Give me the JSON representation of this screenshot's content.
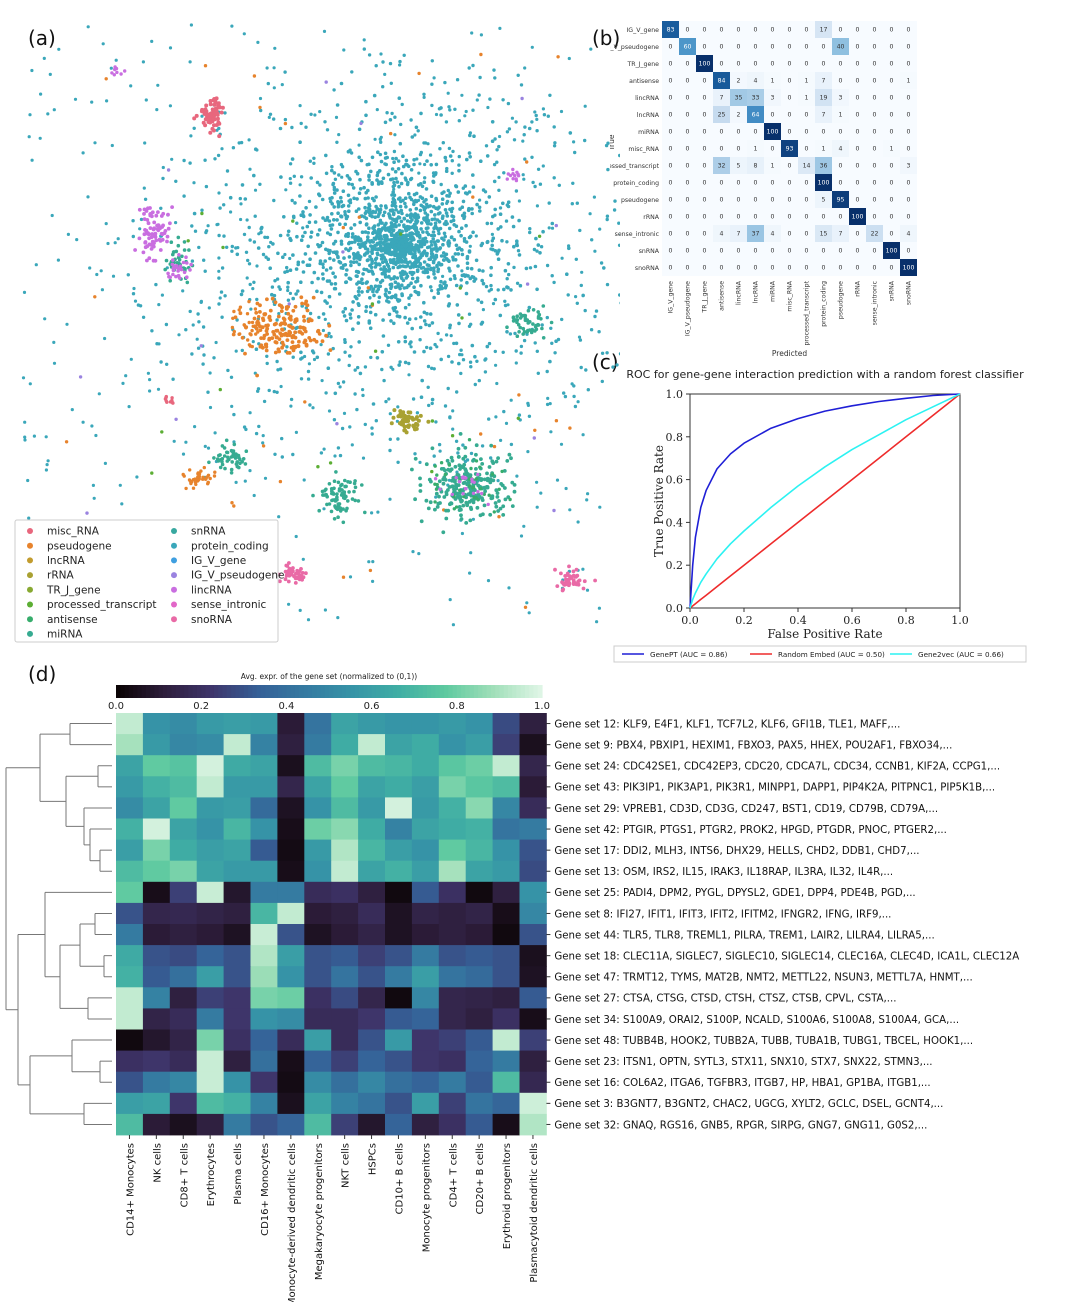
{
  "panel_labels": {
    "a": "(a)",
    "b": "(b)",
    "c": "(c)",
    "d": "(d)"
  },
  "colors": {
    "misc_RNA": "#e8677d",
    "pseudogene": "#e7832c",
    "lincRNA_a": "#c29c2e",
    "rRNA": "#a9a132",
    "TR_J_gene": "#88a932",
    "processed_transcript": "#5cae34",
    "antisense": "#37ad6c",
    "miRNA": "#36ab91",
    "snRNA": "#38a8a0",
    "protein_coding": "#3aa7ba",
    "IG_V_gene": "#3f9fe0",
    "IG_V_pseudogene": "#9a83e0",
    "lincRNA_b": "#c96ee0",
    "sense_intronic": "#e267c8",
    "snoRNA": "#e96aa6",
    "genept": "#1f1fd6",
    "random": "#ee2b2b",
    "gene2vec": "#2cf2f2"
  },
  "chart_data": [
    {
      "type": "scatter",
      "panel": "(a)",
      "legend_position": "bottom-left",
      "legend": [
        {
          "label": "misc_RNA",
          "color": "#e8677d"
        },
        {
          "label": "pseudogene",
          "color": "#e7832c"
        },
        {
          "label": "lncRNA",
          "color": "#c29c2e"
        },
        {
          "label": "rRNA",
          "color": "#a9a132"
        },
        {
          "label": "TR_J_gene",
          "color": "#88a932"
        },
        {
          "label": "processed_transcript",
          "color": "#5cae34"
        },
        {
          "label": "antisense",
          "color": "#37ad6c"
        },
        {
          "label": "miRNA",
          "color": "#36ab91"
        },
        {
          "label": "snRNA",
          "color": "#38a8a0"
        },
        {
          "label": "protein_coding",
          "color": "#3aa7ba"
        },
        {
          "label": "IG_V_gene",
          "color": "#3f9fe0"
        },
        {
          "label": "IG_V_pseudogene",
          "color": "#9a83e0"
        },
        {
          "label": "lincRNA",
          "color": "#c96ee0"
        },
        {
          "label": "sense_intronic",
          "color": "#e267c8"
        },
        {
          "label": "snoRNA",
          "color": "#e96aa6"
        }
      ]
    },
    {
      "type": "heatmap",
      "panel": "(b)",
      "xlabel": "Predicted",
      "ylabel": "True",
      "labels": [
        "IG_V_gene",
        "IG_V_pseudogene",
        "TR_J_gene",
        "antisense",
        "lincRNA",
        "lncRNA",
        "miRNA",
        "misc_RNA",
        "processed_transcript",
        "protein_coding",
        "pseudogene",
        "rRNA",
        "sense_intronic",
        "snRNA",
        "snoRNA"
      ],
      "matrix": [
        [
          83,
          0,
          0,
          0,
          0,
          0,
          0,
          0,
          0,
          17,
          0,
          0,
          0,
          0,
          0
        ],
        [
          0,
          60,
          0,
          0,
          0,
          0,
          0,
          0,
          0,
          0,
          40,
          0,
          0,
          0,
          0
        ],
        [
          0,
          0,
          100,
          0,
          0,
          0,
          0,
          0,
          0,
          0,
          0,
          0,
          0,
          0,
          0
        ],
        [
          0,
          0,
          0,
          84,
          2,
          4,
          1,
          0,
          1,
          7,
          0,
          0,
          0,
          0,
          1
        ],
        [
          0,
          0,
          0,
          7,
          35,
          33,
          3,
          0,
          1,
          19,
          3,
          0,
          0,
          0,
          0
        ],
        [
          0,
          0,
          0,
          25,
          2,
          64,
          0,
          0,
          0,
          7,
          1,
          0,
          0,
          0,
          0
        ],
        [
          0,
          0,
          0,
          0,
          0,
          0,
          100,
          0,
          0,
          0,
          0,
          0,
          0,
          0,
          0
        ],
        [
          0,
          0,
          0,
          0,
          0,
          1,
          0,
          93,
          0,
          1,
          4,
          0,
          0,
          1,
          0
        ],
        [
          0,
          0,
          0,
          32,
          5,
          8,
          1,
          0,
          14,
          36,
          0,
          0,
          0,
          0,
          3
        ],
        [
          0,
          0,
          0,
          0,
          0,
          0,
          0,
          0,
          0,
          100,
          0,
          0,
          0,
          0,
          0
        ],
        [
          0,
          0,
          0,
          0,
          0,
          0,
          0,
          0,
          0,
          5,
          95,
          0,
          0,
          0,
          0
        ],
        [
          0,
          0,
          0,
          0,
          0,
          0,
          0,
          0,
          0,
          0,
          0,
          100,
          0,
          0,
          0
        ],
        [
          0,
          0,
          0,
          4,
          7,
          37,
          4,
          0,
          0,
          15,
          7,
          0,
          22,
          0,
          4
        ],
        [
          0,
          0,
          0,
          0,
          0,
          0,
          0,
          0,
          0,
          0,
          0,
          0,
          0,
          100,
          0
        ],
        [
          0,
          0,
          0,
          0,
          0,
          0,
          0,
          0,
          0,
          0,
          0,
          0,
          0,
          0,
          100
        ]
      ]
    },
    {
      "type": "line",
      "panel": "(c)",
      "title": "ROC for gene-gene interaction prediction with a random forest classifier",
      "xlabel": "False Positive Rate",
      "ylabel": "True Positive Rate",
      "xlim": [
        0,
        1
      ],
      "ylim": [
        0,
        1
      ],
      "ticks": [
        "0.0",
        "0.2",
        "0.4",
        "0.6",
        "0.8",
        "1.0"
      ],
      "legend_position": "bottom",
      "x": [
        0,
        0.01,
        0.02,
        0.04,
        0.06,
        0.1,
        0.15,
        0.2,
        0.3,
        0.4,
        0.5,
        0.6,
        0.7,
        0.8,
        0.9,
        1.0
      ],
      "series": [
        {
          "name": "GenePT (AUC = 0.86)",
          "color": "#1f1fd6",
          "values": [
            0,
            0.2,
            0.33,
            0.47,
            0.55,
            0.65,
            0.72,
            0.77,
            0.84,
            0.885,
            0.92,
            0.945,
            0.965,
            0.98,
            0.993,
            1.0
          ]
        },
        {
          "name": "Random Embed (AUC = 0.50)",
          "color": "#ee2b2b",
          "values": [
            0,
            0.01,
            0.02,
            0.04,
            0.06,
            0.1,
            0.15,
            0.2,
            0.3,
            0.4,
            0.5,
            0.6,
            0.7,
            0.8,
            0.9,
            1.0
          ]
        },
        {
          "name": "Gene2vec (AUC = 0.66)",
          "color": "#2cf2f2",
          "values": [
            0,
            0.04,
            0.07,
            0.12,
            0.16,
            0.23,
            0.3,
            0.36,
            0.47,
            0.57,
            0.66,
            0.74,
            0.81,
            0.88,
            0.94,
            1.0
          ]
        }
      ]
    },
    {
      "type": "heatmap",
      "panel": "(d)",
      "colorbar_label": "Avg. expr. of the gene set (normalized to (0,1))",
      "colorbar_ticks": [
        "0.0",
        "0.2",
        "0.4",
        "0.6",
        "0.8",
        "1.0"
      ],
      "columns": [
        "CD14+ Monocytes",
        "NK cells",
        "CD8+ T cells",
        "Erythrocytes",
        "Plasma cells",
        "CD16+ Monocytes",
        "Monocyte-derived dendritic cells",
        "Megakaryocyte progenitors",
        "NKT cells",
        "HSPCs",
        "CD10+ B cells",
        "Monocyte progenitors",
        "CD4+ T cells",
        "CD20+ B cells",
        "Erythroid progenitors",
        "Plasmacytoid dendritic cells"
      ],
      "rows": [
        "Gene set 12: KLF9, E4F1, KLF1, TCF7L2, KLF6, GFI1B, TLE1, MAFF,...",
        "Gene set 9: PBX4, PBXIP1, HEXIM1, FBXO3, PAX5, HHEX, POU2AF1, FBXO34,...",
        "Gene set 24: CDC42SE1, CDC42EP3, CDC20, CDCA7L, CDC34, CCNB1, KIF2A, CCPG1,...",
        "Gene set 43: PIK3IP1, PIK3AP1, PIK3R1, MINPP1, DAPP1, PIP4K2A, PITPNC1, PIP5K1B,...",
        "Gene set 29: VPREB1, CD3D, CD3G, CD247, BST1, CD19, CD79B, CD79A,...",
        "Gene set 42: PTGIR, PTGS1, PTGR2, PROK2, HPGD, PTGDR, PNOC, PTGER2,...",
        "Gene set 17: DDI2, MLH3, INTS6, DHX29, HELLS, CHD2, DDB1, CHD7,...",
        "Gene set 13: OSM, IRS2, IL15, IRAK3, IL18RAP, IL3RA, IL32, IL4R,...",
        "Gene set 25: PADI4, DPM2, PYGL, DPYSL2, GDE1, DPP4, PDE4B, PGD,...",
        "Gene set 8: IFI27, IFIT1, IFIT3, IFIT2, IFITM2, IFNGR2, IFNG, IRF9,...",
        "Gene set 44: TLR5, TLR8, TREML1, PILRA, TREM1, LAIR2, LILRA4, LILRA5,...",
        "Gene set 18: CLEC11A, SIGLEC7, SIGLEC10, SIGLEC14, CLEC16A, CLEC4D, ICA1L, CLEC12A",
        "Gene set 47: TRMT12, TYMS, MAT2B, NMT2, METTL22, NSUN3, METTL7A, HNMT,...",
        "Gene set 27: CTSA, CTSG, CTSD, CTSH, CTSZ, CTSB, CPVL, CSTA,...",
        "Gene set 34: S100A9, ORAI2, S100P, NCALD, S100A6, S100A8, S100A4, GCA,...",
        "Gene set 48: TUBB4B, HOOK2, TUBB2A, TUBB, TUBA1B, TUBG1, TBCEL, HOOK1,...",
        "Gene set 23: ITSN1, OPTN, SYTL3, STX11, SNX10, STX7, SNX22, STMN3,...",
        "Gene set 16: COL6A2, ITGA6, TGFBR3, ITGB7, HP, HBA1, GP1BA, ITGB1,...",
        "Gene set 3: B3GNT7, B3GNT2, CHAC2, UGCG, XYLT2, GCLC, DSEL, GCNT4,...",
        "Gene set 32: GNAQ, RGS16, GNB5, RPGR, SIRPG, GNG7, GNG11, G0S2,..."
      ],
      "values": [
        [
          0.95,
          0.55,
          0.52,
          0.58,
          0.6,
          0.58,
          0.1,
          0.42,
          0.62,
          0.58,
          0.56,
          0.56,
          0.58,
          0.55,
          0.28,
          0.12
        ],
        [
          0.9,
          0.58,
          0.5,
          0.52,
          0.95,
          0.48,
          0.12,
          0.45,
          0.66,
          0.95,
          0.62,
          0.66,
          0.55,
          0.6,
          0.25,
          0.05
        ],
        [
          0.62,
          0.78,
          0.75,
          0.98,
          0.65,
          0.62,
          0.05,
          0.72,
          0.82,
          0.72,
          0.7,
          0.66,
          0.76,
          0.8,
          0.95,
          0.15
        ],
        [
          0.58,
          0.68,
          0.72,
          0.95,
          0.58,
          0.58,
          0.15,
          0.62,
          0.78,
          0.62,
          0.66,
          0.6,
          0.82,
          0.76,
          0.72,
          0.1
        ],
        [
          0.52,
          0.62,
          0.78,
          0.58,
          0.6,
          0.38,
          0.06,
          0.55,
          0.72,
          0.58,
          0.98,
          0.58,
          0.68,
          0.85,
          0.5,
          0.18
        ],
        [
          0.68,
          0.98,
          0.62,
          0.55,
          0.7,
          0.55,
          0.04,
          0.8,
          0.85,
          0.66,
          0.48,
          0.62,
          0.66,
          0.68,
          0.42,
          0.45
        ],
        [
          0.6,
          0.82,
          0.66,
          0.6,
          0.62,
          0.32,
          0.03,
          0.58,
          0.92,
          0.7,
          0.6,
          0.55,
          0.78,
          0.7,
          0.55,
          0.3
        ],
        [
          0.72,
          0.78,
          0.82,
          0.62,
          0.58,
          0.58,
          0.04,
          0.55,
          0.95,
          0.62,
          0.68,
          0.6,
          0.9,
          0.62,
          0.58,
          0.28
        ],
        [
          0.78,
          0.04,
          0.25,
          0.96,
          0.08,
          0.45,
          0.45,
          0.18,
          0.2,
          0.12,
          0.02,
          0.32,
          0.2,
          0.02,
          0.12,
          0.55
        ],
        [
          0.3,
          0.15,
          0.16,
          0.14,
          0.12,
          0.7,
          0.95,
          0.1,
          0.12,
          0.18,
          0.06,
          0.14,
          0.12,
          0.14,
          0.04,
          0.5
        ],
        [
          0.45,
          0.1,
          0.12,
          0.1,
          0.06,
          0.96,
          0.3,
          0.06,
          0.1,
          0.14,
          0.06,
          0.1,
          0.12,
          0.1,
          0.02,
          0.3
        ],
        [
          0.65,
          0.3,
          0.28,
          0.35,
          0.3,
          0.92,
          0.6,
          0.3,
          0.32,
          0.25,
          0.3,
          0.45,
          0.3,
          0.32,
          0.3,
          0.05
        ],
        [
          0.68,
          0.32,
          0.4,
          0.6,
          0.3,
          0.88,
          0.55,
          0.3,
          0.42,
          0.3,
          0.45,
          0.6,
          0.42,
          0.38,
          0.3,
          0.06
        ],
        [
          0.95,
          0.48,
          0.12,
          0.25,
          0.22,
          0.82,
          0.8,
          0.2,
          0.28,
          0.15,
          0.02,
          0.5,
          0.15,
          0.14,
          0.12,
          0.32
        ],
        [
          0.95,
          0.14,
          0.18,
          0.45,
          0.22,
          0.55,
          0.52,
          0.18,
          0.18,
          0.22,
          0.32,
          0.35,
          0.15,
          0.12,
          0.2,
          0.04
        ],
        [
          0.02,
          0.08,
          0.14,
          0.82,
          0.2,
          0.35,
          0.18,
          0.6,
          0.18,
          0.3,
          0.58,
          0.22,
          0.25,
          0.32,
          0.95,
          0.25
        ],
        [
          0.2,
          0.22,
          0.18,
          0.96,
          0.12,
          0.4,
          0.04,
          0.35,
          0.25,
          0.35,
          0.3,
          0.22,
          0.2,
          0.35,
          0.45,
          0.12
        ],
        [
          0.3,
          0.45,
          0.5,
          0.96,
          0.55,
          0.22,
          0.03,
          0.52,
          0.4,
          0.5,
          0.4,
          0.35,
          0.45,
          0.32,
          0.72,
          0.16
        ],
        [
          0.6,
          0.62,
          0.22,
          0.72,
          0.68,
          0.48,
          0.05,
          0.62,
          0.48,
          0.42,
          0.3,
          0.6,
          0.25,
          0.42,
          0.36,
          0.97
        ],
        [
          0.72,
          0.1,
          0.05,
          0.12,
          0.45,
          0.3,
          0.35,
          0.72,
          0.25,
          0.08,
          0.35,
          0.12,
          0.2,
          0.32,
          0.04,
          0.92
        ]
      ]
    }
  ]
}
